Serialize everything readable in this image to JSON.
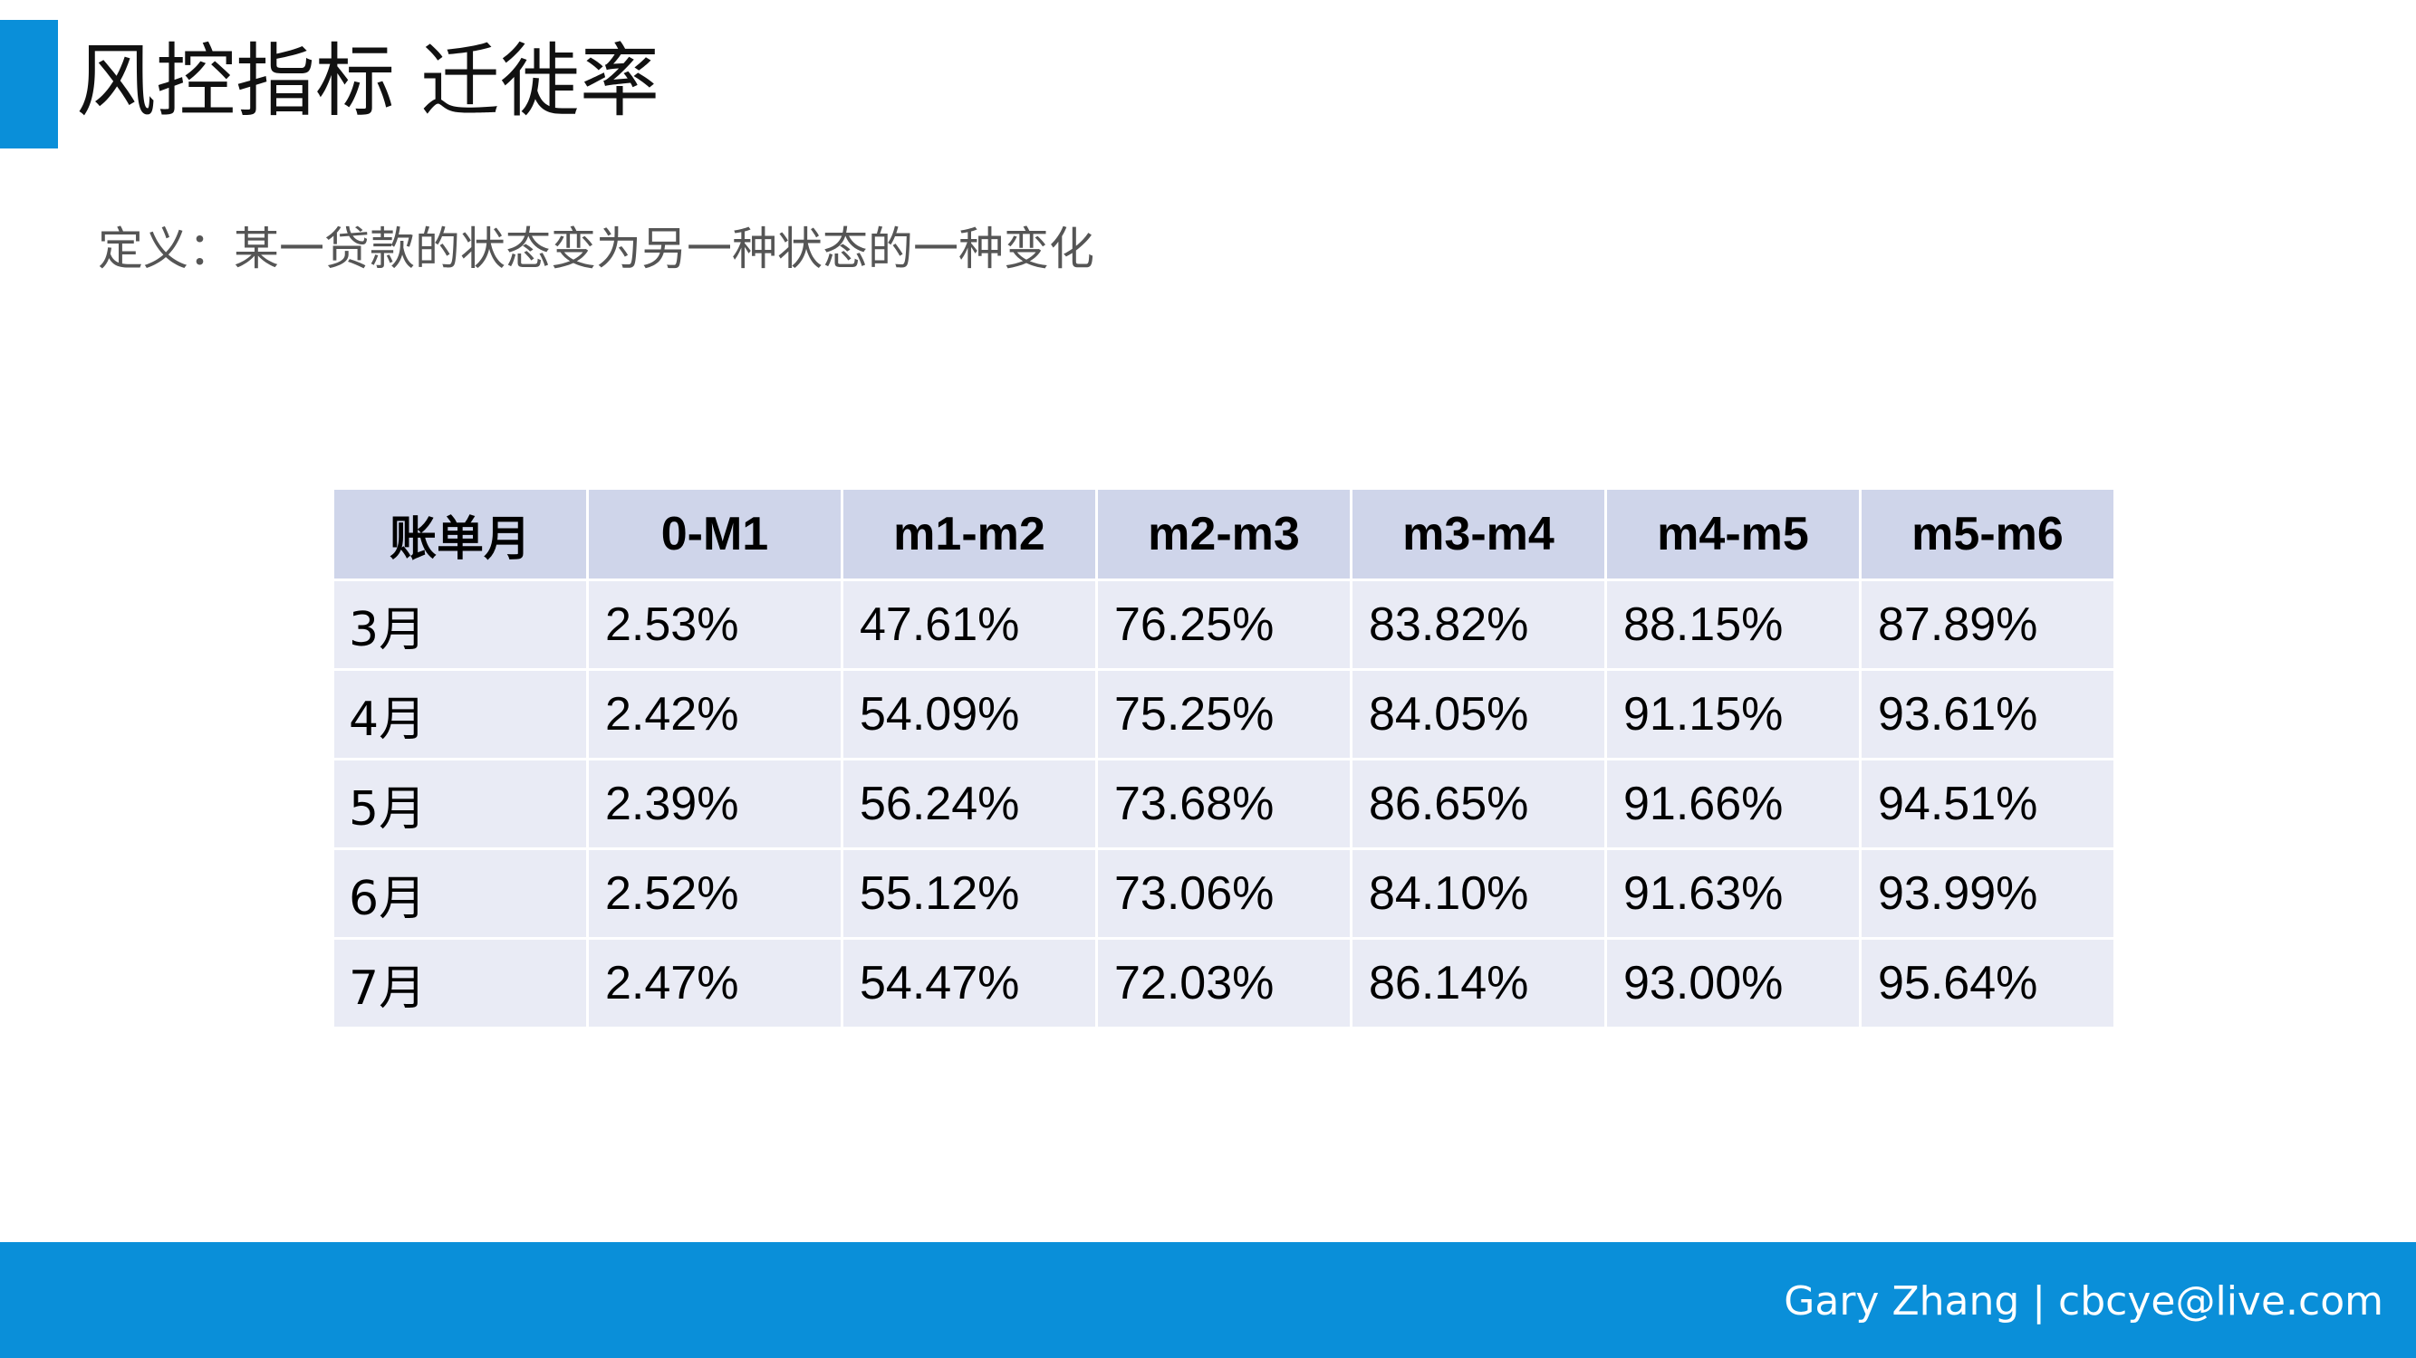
{
  "header": {
    "title": "风控指标 迁徙率",
    "accent_color": "#0a8fd9"
  },
  "definition": "定义：某一贷款的状态变为另一种状态的一种变化",
  "table": {
    "columns": [
      "账单月",
      "0-M1",
      "m1-m2",
      "m2-m3",
      "m3-m4",
      "m4-m5",
      "m5-m6"
    ],
    "rows": [
      [
        "3月",
        "2.53%",
        "47.61%",
        "76.25%",
        "83.82%",
        "88.15%",
        "87.89%"
      ],
      [
        "4月",
        "2.42%",
        "54.09%",
        "75.25%",
        "84.05%",
        "91.15%",
        "93.61%"
      ],
      [
        "5月",
        "2.39%",
        "56.24%",
        "73.68%",
        "86.65%",
        "91.66%",
        "94.51%"
      ],
      [
        "6月",
        "2.52%",
        "55.12%",
        "73.06%",
        "84.10%",
        "91.63%",
        "93.99%"
      ],
      [
        "7月",
        "2.47%",
        "54.47%",
        "72.03%",
        "86.14%",
        "93.00%",
        "95.64%"
      ]
    ],
    "header_color": "#cfd5ea",
    "row_color": "#e9ebf5"
  },
  "footer": {
    "text": "Gary Zhang | cbcye@live.com",
    "color": "#0a8fd9"
  }
}
